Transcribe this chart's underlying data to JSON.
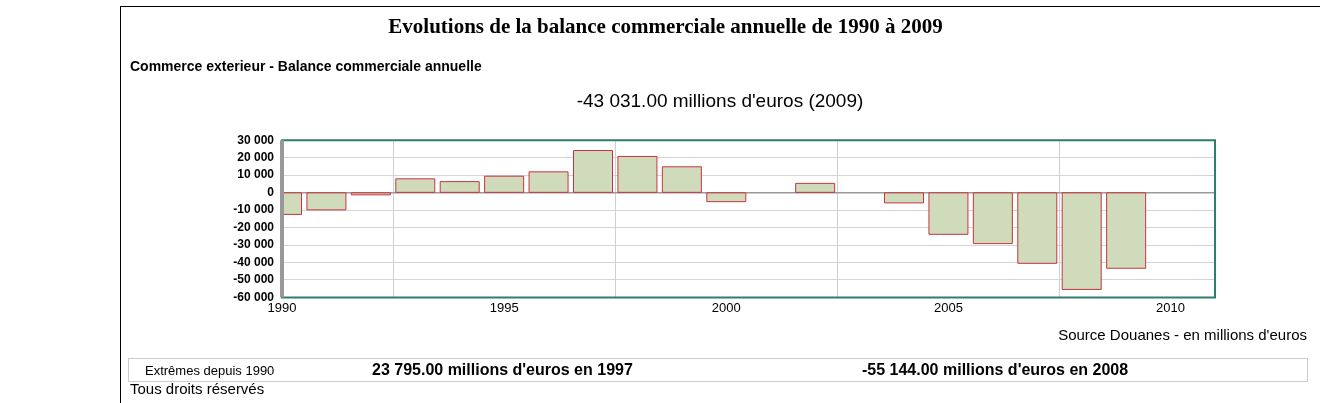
{
  "chart_data": {
    "type": "bar",
    "title": "Evolutions de la balance commerciale annuelle de 1990 à 2009",
    "subtitle": "Commerce exterieur - Balance commerciale annuelle",
    "annotations": [
      "-43 031.00 millions d'euros (2009)",
      "Source Douanes - en millions d'euros",
      "Extrêmes depuis 1990",
      "23 795.00 millions d'euros en 1997",
      "-55 144.00 millions d'euros en 2008",
      "Tous droits réservés"
    ],
    "x": [
      1990,
      1991,
      1992,
      1993,
      1994,
      1995,
      1996,
      1997,
      1998,
      1999,
      2000,
      2001,
      2002,
      2003,
      2004,
      2005,
      2006,
      2007,
      2008,
      2009
    ],
    "values": [
      -12200,
      -9600,
      -1000,
      7600,
      6000,
      9100,
      11600,
      23795,
      20400,
      14500,
      -4900,
      null,
      5000,
      null,
      -5600,
      -23600,
      -28900,
      -40200,
      -55144,
      -43031
    ],
    "color": "#cfdbbb",
    "xlim": [
      1990,
      2011
    ],
    "xticks": [
      1990,
      1995,
      2000,
      2005,
      2010
    ],
    "ylim": [
      -60000,
      30000
    ],
    "yticks": [
      {
        "value": -60000,
        "label": "-60 000"
      },
      {
        "value": -50000,
        "label": "-50 000"
      },
      {
        "value": -40000,
        "label": "-40 000"
      },
      {
        "value": -30000,
        "label": "-30 000"
      },
      {
        "value": -20000,
        "label": "-20 000"
      },
      {
        "value": -10000,
        "label": "-10 000"
      },
      {
        "value": 0,
        "label": "0"
      },
      {
        "value": 10000,
        "label": "10 000"
      },
      {
        "value": 20000,
        "label": "20 000"
      },
      {
        "value": 30000,
        "label": "30 000"
      }
    ],
    "grid": true,
    "legend": false
  }
}
